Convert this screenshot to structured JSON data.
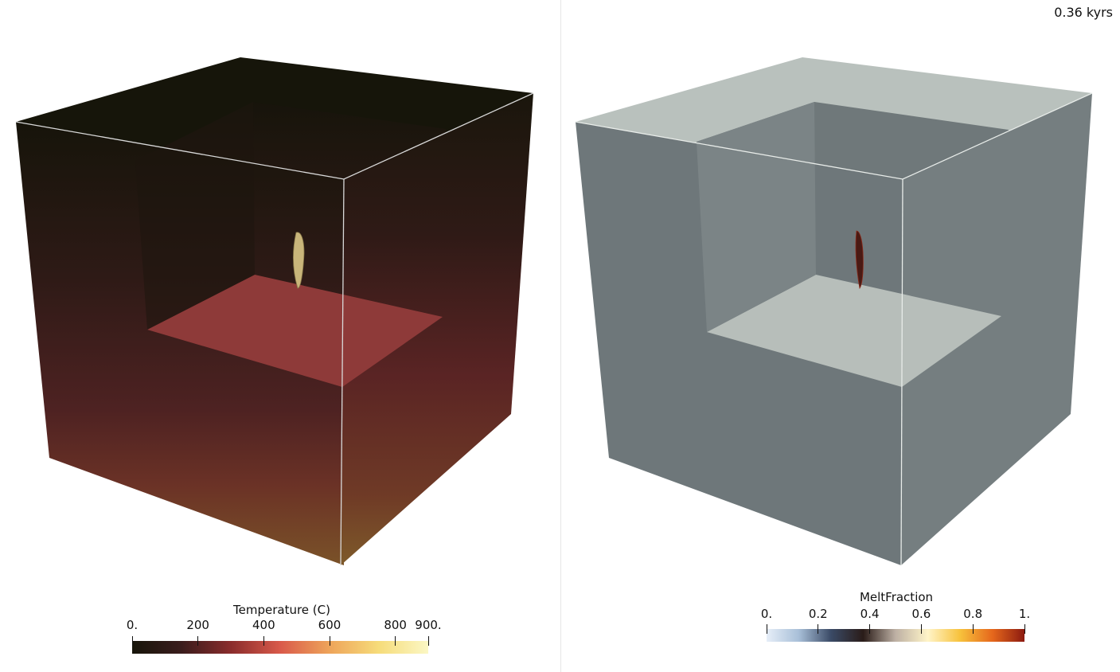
{
  "time_label": "0.36 kyrs",
  "left_view": {
    "colorbar": {
      "title": "Temperature (C)",
      "ticks": [
        {
          "label": "0.",
          "value": 0
        },
        {
          "label": "200",
          "value": 200
        },
        {
          "label": "400",
          "value": 400
        },
        {
          "label": "600",
          "value": 600
        },
        {
          "label": "800",
          "value": 800
        },
        {
          "label": "900.",
          "value": 900
        }
      ],
      "range": [
        0,
        900
      ],
      "colors": [
        "#17150a",
        "#3a1c1c",
        "#8a2c2c",
        "#d95a4a",
        "#eea45a",
        "#f6dc7a",
        "#fbf7c4"
      ]
    }
  },
  "right_view": {
    "colorbar": {
      "title": "MeltFraction",
      "ticks": [
        {
          "label": "0.",
          "value": 0
        },
        {
          "label": "0.2",
          "value": 0.2
        },
        {
          "label": "0.4",
          "value": 0.4
        },
        {
          "label": "0.6",
          "value": 0.6
        },
        {
          "label": "0.8",
          "value": 0.8
        },
        {
          "label": "1.",
          "value": 1
        }
      ],
      "range": [
        0,
        1
      ],
      "colors": [
        "#e6eef8",
        "#a8bfd8",
        "#3a4a66",
        "#2a1c18",
        "#bdb0a4",
        "#fff4c8",
        "#f7c23c",
        "#e6681c",
        "#8c1a10"
      ]
    }
  }
}
